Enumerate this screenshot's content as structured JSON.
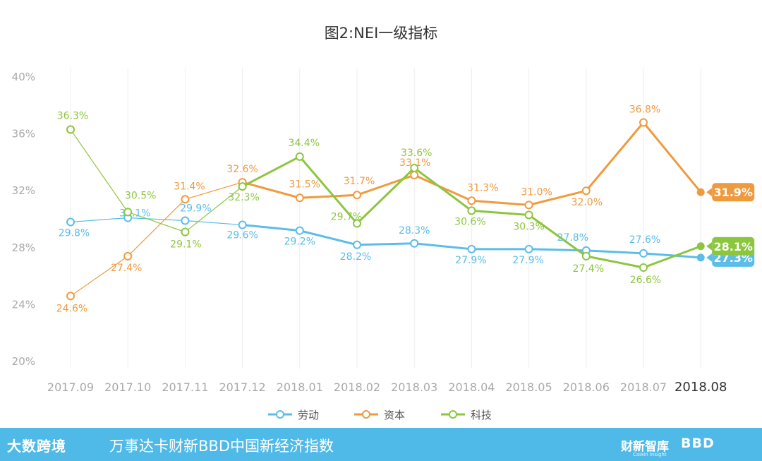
{
  "chart_data": {
    "type": "line",
    "title": "图2:NEI一级指标",
    "categories": [
      "2017.09",
      "2017.10",
      "2017.11",
      "2017.12",
      "2018.01",
      "2018.02",
      "2018.03",
      "2018.04",
      "2018.05",
      "2018.06",
      "2018.07",
      "2018.08"
    ],
    "ylim": [
      20,
      40
    ],
    "yticks": [
      20,
      24,
      28,
      32,
      36,
      40
    ],
    "ytick_labels": [
      "20%",
      "24%",
      "28%",
      "32%",
      "36%",
      "40%"
    ],
    "grid": "vertical",
    "legend_position": "bottom",
    "series": [
      {
        "name": "劳动",
        "color": "#5bbde8",
        "values": [
          29.8,
          30.1,
          29.9,
          29.6,
          29.2,
          28.2,
          28.3,
          27.9,
          27.9,
          27.8,
          27.6,
          27.3
        ],
        "labels": [
          "29.8%",
          "30.1%",
          "29.9%",
          "29.6%",
          "29.2%",
          "28.2%",
          "28.3%",
          "27.9%",
          "27.9%",
          "27.8%",
          "27.6%",
          "27.3%"
        ]
      },
      {
        "name": "资本",
        "color": "#f09a3e",
        "values": [
          24.6,
          27.4,
          31.4,
          32.6,
          31.5,
          31.7,
          33.1,
          31.3,
          31.0,
          32.0,
          36.8,
          31.9
        ],
        "labels": [
          "24.6%",
          "27.4%",
          "31.4%",
          "32.6%",
          "31.5%",
          "31.7%",
          "33.1%",
          "31.3%",
          "31.0%",
          "32.0%",
          "36.8%",
          "31.9%"
        ]
      },
      {
        "name": "科技",
        "color": "#8cc63f",
        "values": [
          36.3,
          30.5,
          29.1,
          32.3,
          34.4,
          29.7,
          33.6,
          30.6,
          30.3,
          27.4,
          26.6,
          28.1
        ],
        "labels": [
          "36.3%",
          "30.5%",
          "29.1%",
          "32.3%",
          "34.4%",
          "29.7%",
          "33.6%",
          "30.6%",
          "30.3%",
          "27.4%",
          "26.6%",
          "28.1%"
        ]
      }
    ]
  },
  "footer": {
    "brand": "大数跨境",
    "title": "万事达卡财新BBD中国新经济指数",
    "logo1": "财新智库",
    "logo1_sub": "Caixin Insight",
    "logo2": "BBD"
  }
}
